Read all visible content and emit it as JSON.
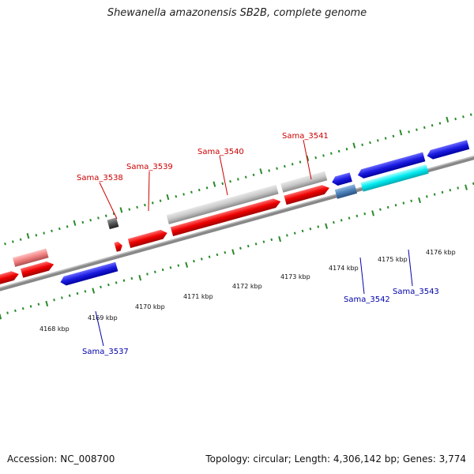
{
  "title": "Shewanella amazonensis SB2B, complete genome",
  "footer": {
    "accession": "Accession: NC_008700",
    "summary": "Topology: circular; Length: 4,306,142 bp; Genes: 3,774"
  },
  "colors": {
    "forward_cds": "#ee0000",
    "reverse_cds": "#1a1ae0",
    "forward_other": "#c8c8c8",
    "reverse_other": "#00eaf0",
    "pseudo_forward": "#f08080",
    "pseudo_reverse": "#4a80b8",
    "unknown": "#555555",
    "backbone": "#888888",
    "tick": "#2a8a2a",
    "label_forward": "#cc0000",
    "label_reverse": "#0000aa"
  },
  "kbp_labels": [
    "4168 kbp",
    "4169 kbp",
    "4170 kbp",
    "4171 kbp",
    "4172 kbp",
    "4173 kbp",
    "4174 kbp",
    "4175 kbp",
    "4176 kbp"
  ],
  "gene_labels_forward": [
    "Sama_3538",
    "Sama_3539",
    "Sama_3540",
    "Sama_3541"
  ],
  "gene_labels_reverse": [
    "Sama_3537",
    "Sama_3542",
    "Sama_3543"
  ]
}
